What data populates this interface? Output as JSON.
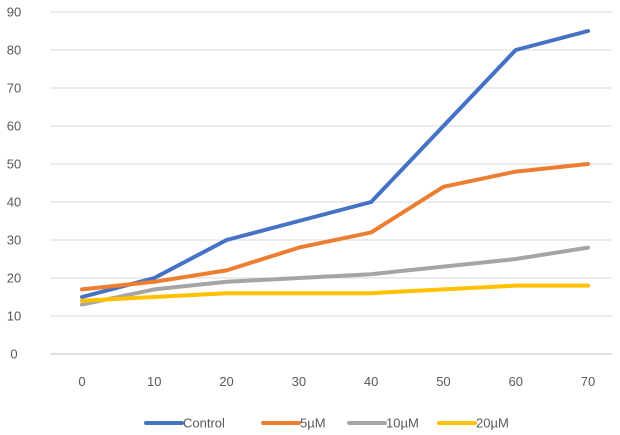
{
  "chart_data": {
    "type": "line",
    "title": "",
    "xlabel": "",
    "ylabel": "",
    "x": [
      0,
      10,
      20,
      30,
      40,
      50,
      60,
      70
    ],
    "xlim": [
      0,
      70
    ],
    "ylim": [
      0,
      90
    ],
    "y_ticks": [
      0,
      10,
      20,
      30,
      40,
      50,
      60,
      70,
      80,
      90
    ],
    "x_tick_labels": [
      "0",
      "10",
      "20",
      "30",
      "40",
      "50",
      "60",
      "70"
    ],
    "y_tick_labels": [
      "0",
      "10",
      "20",
      "30",
      "40",
      "50",
      "60",
      "70",
      "80",
      "90"
    ],
    "grid": "horizontal",
    "legend_position": "bottom",
    "series": [
      {
        "name": "Control",
        "color": "#4472C4",
        "values": [
          15,
          20,
          30,
          35,
          40,
          60,
          80,
          85
        ]
      },
      {
        "name": "5µM",
        "color": "#ED7D31",
        "values": [
          17,
          19,
          22,
          28,
          32,
          44,
          48,
          50
        ]
      },
      {
        "name": "10µM",
        "color": "#A5A5A5",
        "values": [
          13,
          17,
          19,
          20,
          21,
          23,
          25,
          28
        ]
      },
      {
        "name": "20µM",
        "color": "#FFC000",
        "values": [
          14,
          15,
          16,
          16,
          16,
          17,
          18,
          18
        ]
      }
    ]
  }
}
